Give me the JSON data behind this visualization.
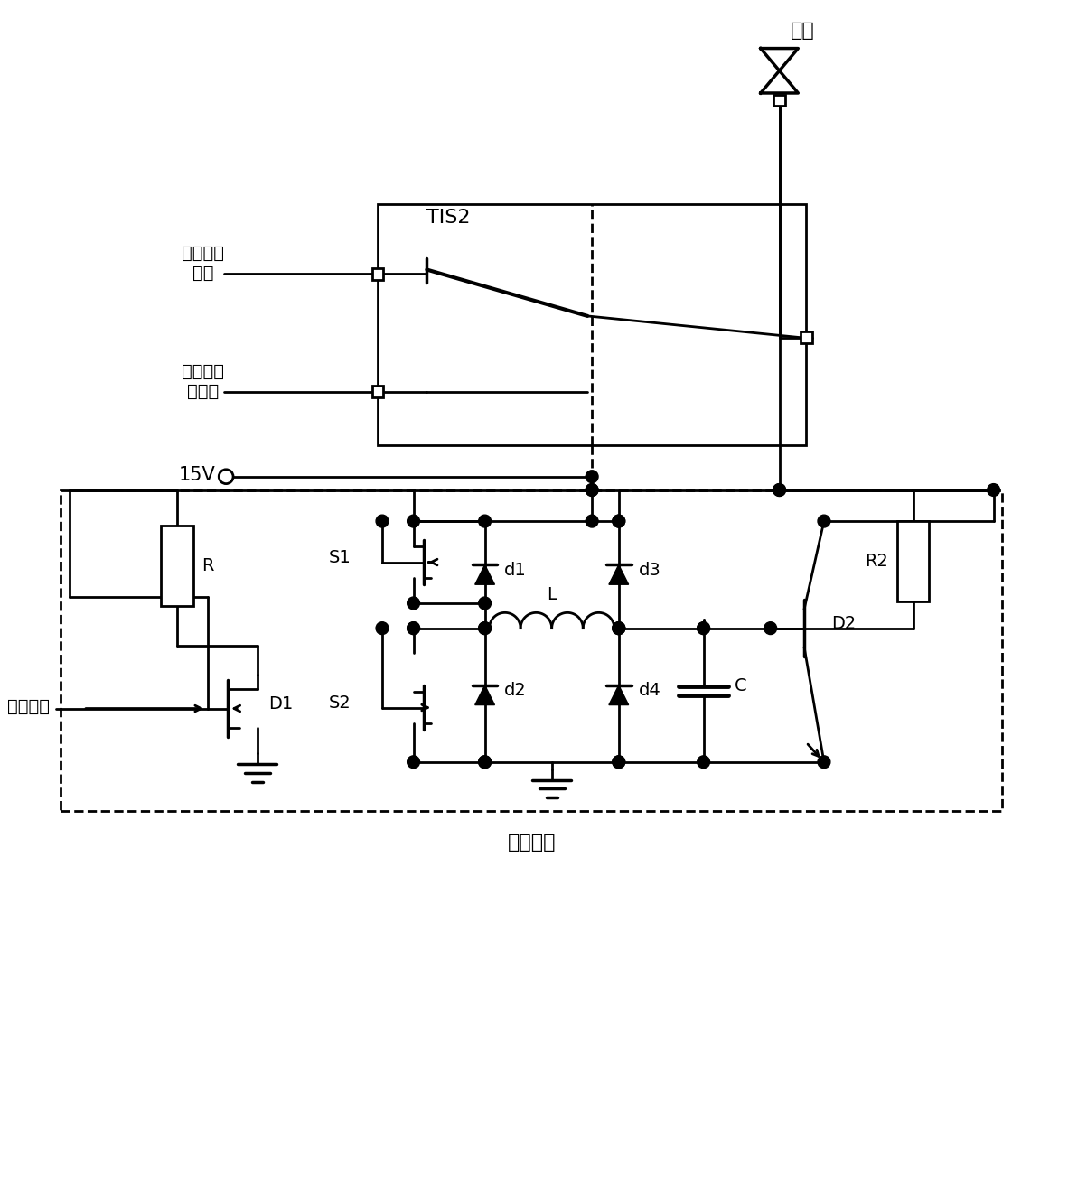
{
  "fig_width": 11.82,
  "fig_height": 13.31,
  "dpi": 100,
  "background": "#ffffff",
  "line_color": "#000000",
  "lw": 2.0,
  "font_size": 14,
  "label_font_size": 16,
  "antenna_label": "天线",
  "tis2_label": "TIS2",
  "sync_label": "同步脉冲\n信号",
  "ctrl_label": "控制及数\n据信息",
  "v15_label": "15V",
  "ctrl_sig_label": "控制信号",
  "drive_circuit_label": "驱动电路",
  "R_label": "R",
  "R2_label": "R2",
  "D1_label": "D1",
  "D2_label": "D2",
  "S1_label": "S1",
  "S2_label": "S2",
  "d1_label": "d1",
  "d2_label": "d2",
  "d3_label": "d3",
  "d4_label": "d4",
  "L_label": "L",
  "C_label": "C"
}
